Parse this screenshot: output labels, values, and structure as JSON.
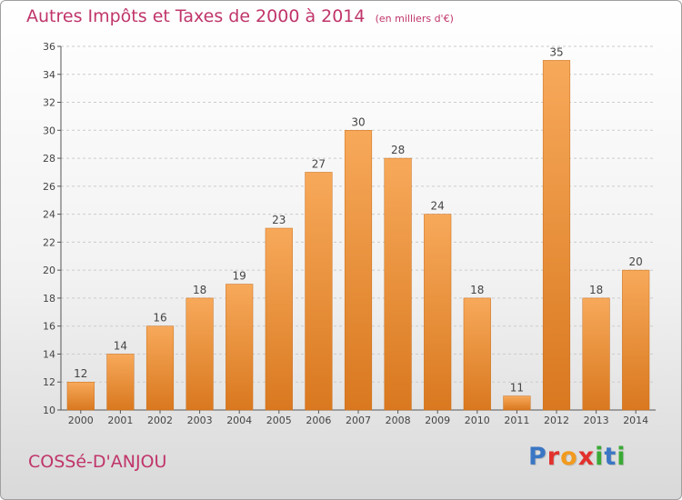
{
  "header": {
    "title": "Autres Impôts et Taxes de 2000 à 2014",
    "subtitle": "(en milliers d'€)"
  },
  "footer": {
    "commune": "COSSé-D'ANJOU",
    "brand": "Proxiti",
    "brand_colors": [
      "#3a76c4",
      "#e2312d",
      "#f29a1e",
      "#e2312d",
      "#3aaa35",
      "#3a76c4",
      "#3aaa35"
    ]
  },
  "colors": {
    "bar_light": "#f7a95a",
    "bar_dark": "#d9781f",
    "accent": "#c0356a",
    "grid": "#cccccc"
  },
  "chart_data": {
    "type": "bar",
    "title": "Autres Impôts et Taxes de 2000 à 2014",
    "subtitle": "(en milliers d'€)",
    "categories": [
      "2000",
      "2001",
      "2002",
      "2003",
      "2004",
      "2005",
      "2006",
      "2007",
      "2008",
      "2009",
      "2010",
      "2011",
      "2012",
      "2013",
      "2014"
    ],
    "values": [
      12,
      14,
      16,
      18,
      19,
      23,
      27,
      30,
      28,
      24,
      18,
      11,
      35,
      18,
      20
    ],
    "ylim": [
      10,
      36
    ],
    "yticks": [
      10,
      12,
      14,
      16,
      18,
      20,
      22,
      24,
      26,
      28,
      30,
      32,
      34,
      36
    ],
    "grid": true
  }
}
